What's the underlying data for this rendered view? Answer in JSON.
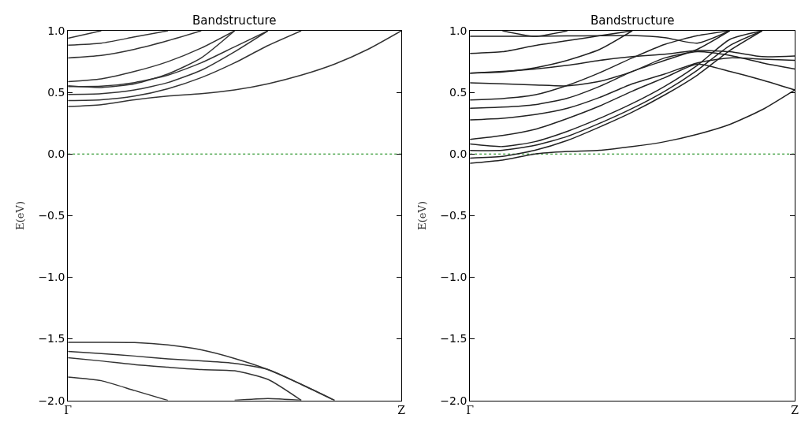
{
  "chart_data": [
    {
      "type": "line",
      "title": "Bandstructure",
      "ylabel": "E(eV)",
      "categories": [
        "Γ",
        null,
        null,
        null,
        null,
        null,
        null,
        null,
        null,
        null,
        "Z"
      ],
      "ylim": [
        -2,
        1
      ],
      "yticks": [
        {
          "value": -2,
          "label": "−2.0"
        },
        {
          "value": -1.5,
          "label": "−1.5"
        },
        {
          "value": -1,
          "label": "−1.0"
        },
        {
          "value": -0.5,
          "label": "−0.5"
        },
        {
          "value": 0,
          "label": "0.0"
        },
        {
          "value": 0.5,
          "label": "0.5"
        },
        {
          "value": 1,
          "label": "1.0"
        }
      ],
      "grid": false,
      "marker": "none",
      "line_style": "solid",
      "ref_lines": [
        {
          "axis": "y",
          "value": 0,
          "color": "#008000",
          "line_style": "dotted"
        }
      ],
      "series": [
        {
          "color": "#333333",
          "values": [
            0.94,
            1.0,
            null,
            null,
            null,
            null,
            null,
            null,
            null,
            null,
            null
          ]
        },
        {
          "color": "#333333",
          "values": [
            0.884,
            0.9,
            0.95,
            1.0,
            null,
            null,
            null,
            null,
            null,
            null,
            null
          ]
        },
        {
          "color": "#333333",
          "values": [
            0.78,
            0.8,
            0.85,
            0.92,
            1.0,
            null,
            null,
            null,
            null,
            null,
            null
          ]
        },
        {
          "color": "#333333",
          "values": [
            0.588,
            0.61,
            0.67,
            0.75,
            0.86,
            1.0,
            null,
            null,
            null,
            null,
            null
          ]
        },
        {
          "color": "#333333",
          "values": [
            0.553,
            0.54,
            0.57,
            0.65,
            0.78,
            1.0,
            null,
            null,
            null,
            null,
            null
          ]
        },
        {
          "color": "#333333",
          "values": [
            0.548,
            0.55,
            0.58,
            0.64,
            0.74,
            0.87,
            1.0,
            null,
            null,
            null,
            null
          ]
        },
        {
          "color": "#333333",
          "values": [
            0.484,
            0.49,
            0.52,
            0.58,
            0.68,
            0.83,
            1.0,
            null,
            null,
            null,
            null
          ]
        },
        {
          "color": "#333333",
          "values": [
            0.433,
            0.44,
            0.47,
            0.53,
            0.62,
            0.74,
            0.88,
            1.0,
            null,
            null,
            null
          ]
        },
        {
          "color": "#333333",
          "values": [
            0.385,
            0.4,
            0.44,
            0.47,
            0.49,
            0.52,
            0.57,
            0.64,
            0.73,
            0.85,
            1.0
          ]
        },
        {
          "color": "#333333",
          "values": [
            -1.528,
            -1.528,
            -1.53,
            -1.55,
            -1.59,
            -1.66,
            -1.75,
            -1.87,
            -2.0,
            null,
            null
          ]
        },
        {
          "color": "#333333",
          "values": [
            -1.603,
            -1.62,
            -1.64,
            -1.663,
            -1.68,
            -1.7,
            -1.75,
            -1.87,
            -2.0,
            null,
            null
          ]
        },
        {
          "color": "#333333",
          "values": [
            -1.654,
            -1.68,
            -1.71,
            -1.731,
            -1.75,
            -1.76,
            -1.83,
            -2.0,
            null,
            null,
            null
          ]
        },
        {
          "color": "#333333",
          "values": [
            -1.81,
            -1.84,
            -1.92,
            -2.0,
            null,
            null,
            null,
            null,
            null,
            null,
            null
          ]
        },
        {
          "color": "#333333",
          "values": [
            null,
            null,
            null,
            null,
            null,
            -2.0,
            -1.985,
            -2.0,
            null,
            null,
            null
          ]
        }
      ]
    },
    {
      "type": "line",
      "title": "Bandstructure",
      "ylabel": "E(eV)",
      "categories": [
        "Γ",
        null,
        null,
        null,
        null,
        null,
        null,
        null,
        null,
        null,
        "Z"
      ],
      "ylim": [
        -2,
        1
      ],
      "yticks": [
        {
          "value": -2,
          "label": "−2.0"
        },
        {
          "value": -1.5,
          "label": "−1.5"
        },
        {
          "value": -1,
          "label": "−1.0"
        },
        {
          "value": -0.5,
          "label": "−0.5"
        },
        {
          "value": 0,
          "label": "0.0"
        },
        {
          "value": 0.5,
          "label": "0.5"
        },
        {
          "value": 1,
          "label": "1.0"
        }
      ],
      "grid": false,
      "marker": "none",
      "line_style": "solid",
      "ref_lines": [
        {
          "axis": "y",
          "value": 0,
          "color": "#008000",
          "line_style": "dotted"
        }
      ],
      "series": [
        {
          "color": "#222222",
          "values": [
            null,
            1.0,
            0.955,
            1.0,
            null,
            null,
            null,
            null,
            null,
            null,
            null
          ]
        },
        {
          "color": "#222222",
          "values": [
            0.955,
            0.955,
            0.956,
            0.958,
            0.96,
            0.962,
            0.945,
            0.9,
            1.0,
            null,
            null
          ]
        },
        {
          "color": "#222222",
          "values": [
            0.816,
            0.83,
            0.88,
            0.92,
            0.96,
            1.0,
            null,
            null,
            null,
            null,
            null
          ]
        },
        {
          "color": "#222222",
          "values": [
            0.656,
            0.665,
            0.7,
            0.76,
            0.85,
            1.0,
            null,
            null,
            null,
            null,
            null
          ]
        },
        {
          "color": "#222222",
          "values": [
            0.656,
            0.67,
            0.69,
            0.72,
            0.76,
            0.79,
            0.81,
            0.84,
            0.83,
            0.79,
            0.795
          ]
        },
        {
          "color": "#222222",
          "values": [
            0.578,
            0.57,
            0.56,
            0.553,
            0.59,
            0.67,
            0.78,
            0.83,
            0.8,
            0.74,
            0.69
          ]
        },
        {
          "color": "#222222",
          "values": [
            0.439,
            0.45,
            0.48,
            0.557,
            0.66,
            0.78,
            0.89,
            0.96,
            1.0,
            null,
            null
          ]
        },
        {
          "color": "#222222",
          "values": [
            0.371,
            0.38,
            0.4,
            0.453,
            0.55,
            0.67,
            0.76,
            0.85,
            1.0,
            null,
            null
          ]
        },
        {
          "color": "#222222",
          "values": [
            0.277,
            0.29,
            0.32,
            0.371,
            0.46,
            0.57,
            0.65,
            0.74,
            0.78,
            0.77,
            0.76
          ]
        },
        {
          "color": "#222222",
          "values": [
            0.118,
            0.15,
            0.2,
            0.288,
            0.39,
            0.51,
            0.62,
            0.73,
            0.67,
            0.6,
            0.52
          ]
        },
        {
          "color": "#222222",
          "values": [
            0.081,
            0.06,
            0.1,
            0.184,
            0.29,
            0.41,
            0.55,
            0.72,
            0.93,
            1.0,
            null
          ]
        },
        {
          "color": "#222222",
          "values": [
            0.029,
            0.03,
            0.07,
            0.143,
            0.25,
            0.37,
            0.51,
            0.68,
            0.88,
            1.0,
            null
          ]
        },
        {
          "color": "#222222",
          "values": [
            -0.033,
            -0.02,
            0.03,
            0.11,
            0.22,
            0.34,
            0.48,
            0.64,
            0.84,
            1.0,
            null
          ]
        },
        {
          "color": "#222222",
          "values": [
            -0.075,
            -0.05,
            0.0,
            0.02,
            0.03,
            0.06,
            0.1,
            0.16,
            0.24,
            0.36,
            0.52
          ]
        }
      ]
    }
  ]
}
